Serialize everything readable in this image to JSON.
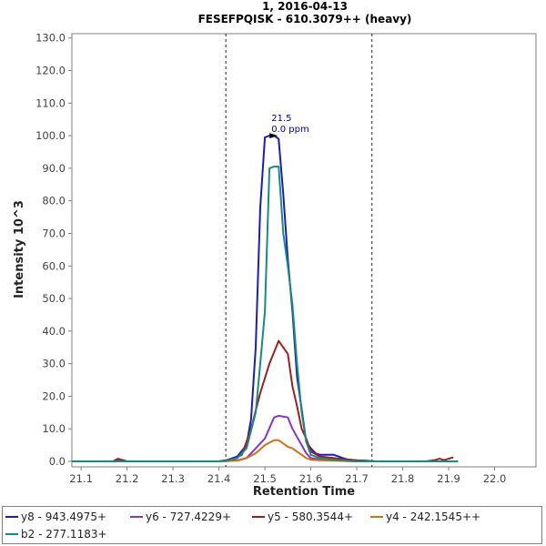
{
  "chart_data": {
    "type": "line",
    "title": "1, 2016-04-13",
    "subtitle": "FESEFPQISK - 610.3079++ (heavy)",
    "xlabel": "Retention Time",
    "ylabel": "Intensity 10^3",
    "xlim": [
      21.08,
      22.09
    ],
    "ylim": [
      0,
      133
    ],
    "xticks": [
      21.1,
      21.2,
      21.3,
      21.4,
      21.5,
      21.6,
      21.7,
      21.8,
      21.9,
      22.0
    ],
    "xtick_labels": [
      "21.1",
      "21.2",
      "21.3",
      "21.4",
      "21.5",
      "21.6",
      "21.7",
      "21.8",
      "21.9",
      "22.0"
    ],
    "yticks": [
      0,
      10,
      20,
      30,
      40,
      50,
      60,
      70,
      80,
      90,
      100,
      110,
      120,
      130
    ],
    "ytick_labels": [
      "0.0",
      "10.0",
      "20.0",
      "30.0",
      "40.0",
      "50.0",
      "60.0",
      "70.0",
      "80.0",
      "90.0",
      "100.0",
      "110.0",
      "120.0",
      "130.0"
    ],
    "boundaries": [
      21.415,
      21.733
    ],
    "peak_annotation": {
      "x": 21.53,
      "y": 100.0,
      "line1": "21.5",
      "line2": "0.0 ppm"
    },
    "legend_position": "bottom",
    "grid": false,
    "series": [
      {
        "name": "y8 - 943.4975+",
        "color": "#1a1acc",
        "x": [
          21.08,
          21.4,
          21.42,
          21.44,
          21.46,
          21.47,
          21.48,
          21.49,
          21.5,
          21.51,
          21.52,
          21.53,
          21.54,
          21.55,
          21.56,
          21.57,
          21.58,
          21.59,
          21.6,
          21.61,
          21.62,
          21.63,
          21.64,
          21.65,
          21.66,
          21.67,
          21.68,
          21.7,
          21.72,
          21.74,
          21.92
        ],
        "y": [
          0,
          0,
          0.5,
          1.5,
          5,
          13,
          35,
          78,
          99.5,
          100,
          100,
          99,
          82,
          62,
          46,
          26,
          16,
          6,
          4,
          2.5,
          2,
          2,
          2,
          2,
          1.5,
          1,
          0.6,
          0.3,
          0.2,
          0,
          0
        ]
      },
      {
        "name": "y6 - 727.4229+",
        "color": "#8c32cc",
        "x": [
          21.08,
          21.17,
          21.18,
          21.2,
          21.3,
          21.4,
          21.44,
          21.46,
          21.48,
          21.5,
          21.52,
          21.53,
          21.55,
          21.56,
          21.57,
          21.58,
          21.59,
          21.6,
          21.62,
          21.65,
          21.67,
          21.7,
          21.92
        ],
        "y": [
          0,
          0,
          0.4,
          0,
          0,
          0,
          0.3,
          1,
          4,
          7,
          13.5,
          14,
          13.5,
          10,
          7.5,
          5,
          2.5,
          1,
          0.6,
          0.5,
          0.3,
          0,
          0
        ]
      },
      {
        "name": "y5 - 580.3544+",
        "color": "#a01e1e",
        "x": [
          21.08,
          21.17,
          21.18,
          21.2,
          21.3,
          21.4,
          21.43,
          21.45,
          21.47,
          21.49,
          21.51,
          21.53,
          21.55,
          21.56,
          21.57,
          21.58,
          21.59,
          21.6,
          21.62,
          21.65,
          21.67,
          21.7,
          21.74,
          21.85,
          21.87,
          21.88,
          21.89,
          21.9,
          21.91
        ],
        "y": [
          0,
          0,
          0.8,
          0,
          0,
          0,
          0.5,
          2,
          10,
          21,
          30,
          37,
          33,
          23,
          17,
          10,
          7,
          3,
          1.5,
          1,
          0.7,
          0.3,
          0,
          0,
          0.4,
          0.8,
          0.4,
          0.8,
          1.2
        ]
      },
      {
        "name": "y4 - 242.1545++",
        "color": "#d27014",
        "x": [
          21.08,
          21.4,
          21.44,
          21.46,
          21.48,
          21.5,
          21.52,
          21.53,
          21.55,
          21.56,
          21.57,
          21.58,
          21.59,
          21.6,
          21.62,
          21.65,
          21.7,
          21.92
        ],
        "y": [
          0,
          0,
          0.2,
          1,
          2.5,
          5,
          6.5,
          6.5,
          4.5,
          4,
          3,
          2,
          1,
          0.5,
          0.3,
          0.2,
          0,
          0
        ]
      },
      {
        "name": "b2 - 277.1183+",
        "color": "#168c7c",
        "x": [
          21.08,
          21.4,
          21.42,
          21.44,
          21.46,
          21.48,
          21.49,
          21.5,
          21.51,
          21.52,
          21.53,
          21.54,
          21.55,
          21.56,
          21.57,
          21.58,
          21.59,
          21.6,
          21.62,
          21.65,
          21.7,
          21.92
        ],
        "y": [
          0,
          0,
          0.3,
          1,
          4,
          15,
          30,
          46,
          90,
          90.5,
          90.5,
          70,
          60,
          48,
          30,
          15,
          6,
          2,
          1,
          0.5,
          0,
          0
        ]
      }
    ]
  }
}
